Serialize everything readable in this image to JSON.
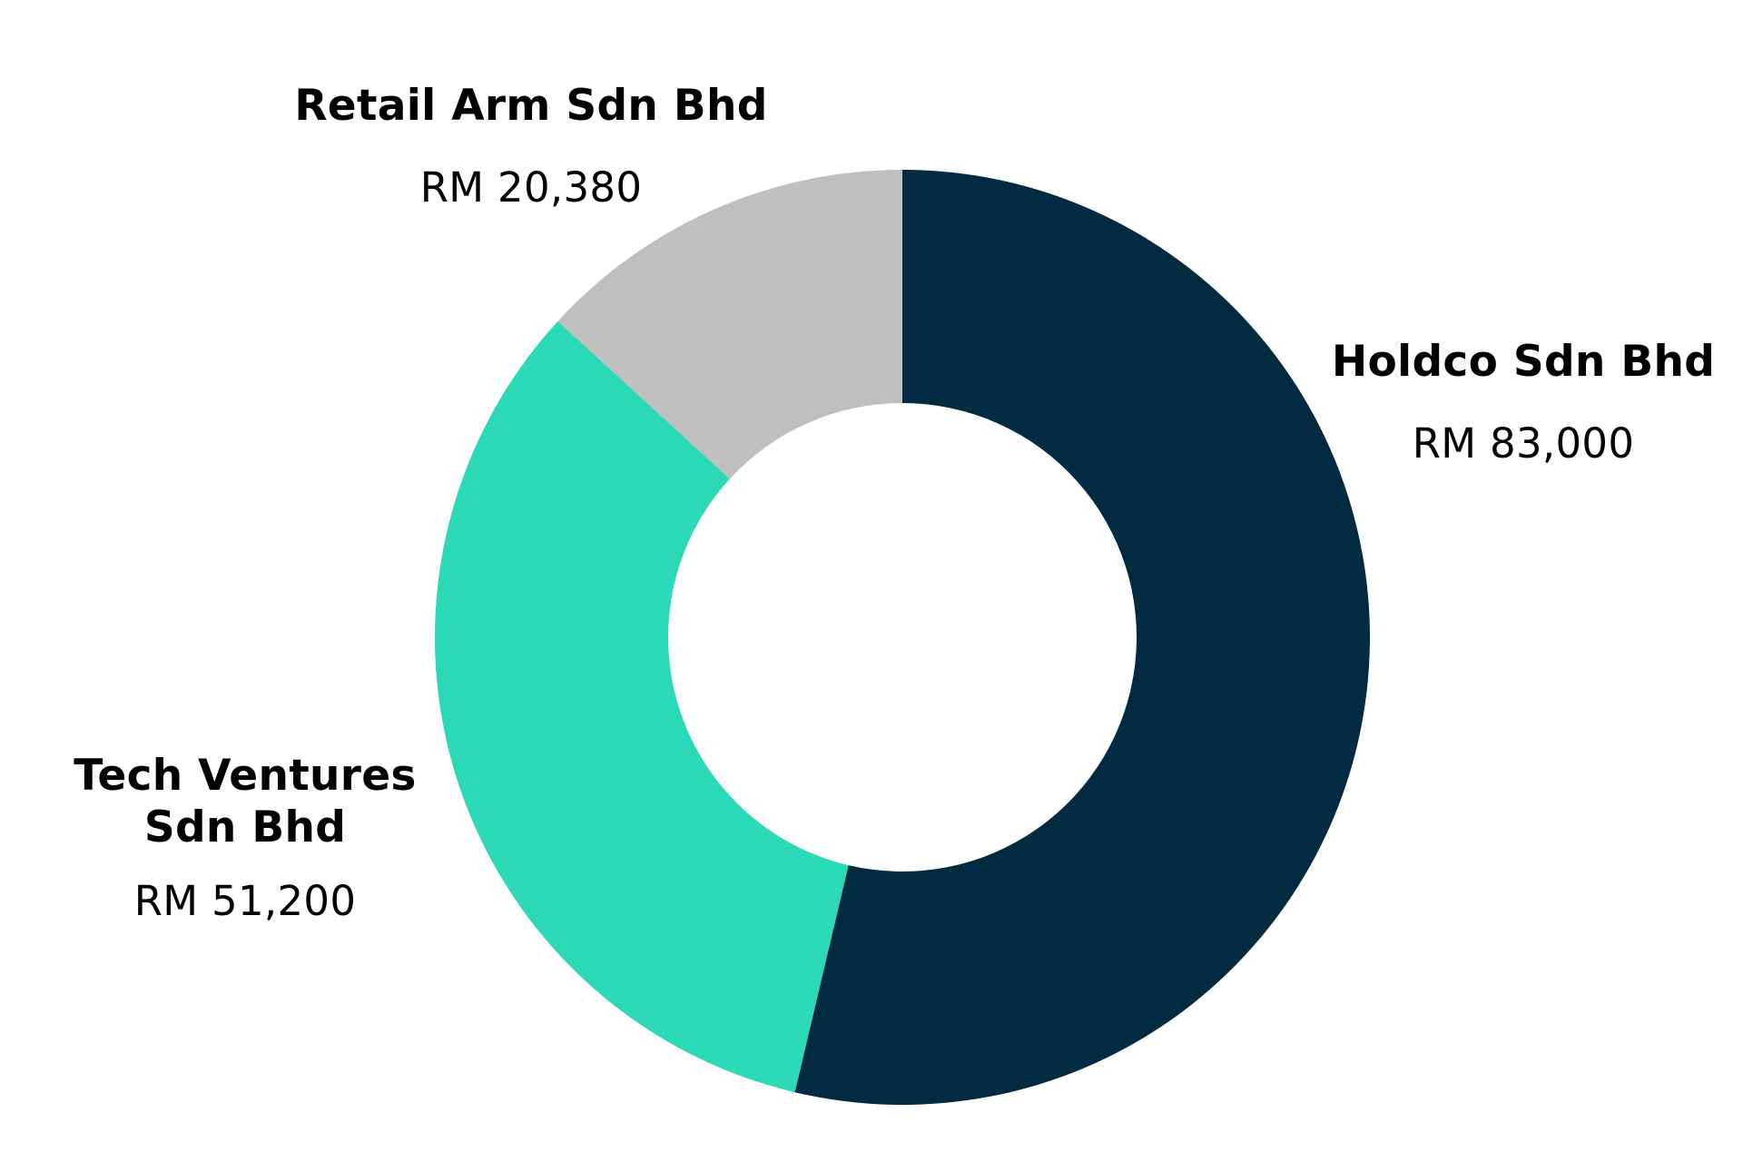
{
  "chart_data": {
    "type": "pie",
    "donut": true,
    "title": "",
    "slices": [
      {
        "name": "Holdco Sdn Bhd",
        "value": 83000,
        "value_label": "RM 83,000",
        "color": "#022a40"
      },
      {
        "name": "Tech Ventures Sdn Bhd",
        "name_lines": [
          "Tech Ventures",
          "Sdn Bhd"
        ],
        "value": 51200,
        "value_label": "RM 51,200",
        "color": "#2bd9b6"
      },
      {
        "name": "Retail Arm Sdn Bhd",
        "value": 20380,
        "value_label": "RM 20,380",
        "color": "#bfbfbf"
      }
    ],
    "start_angle": "12 o'clock",
    "direction": "clockwise",
    "legend": "none (direct labels)"
  }
}
